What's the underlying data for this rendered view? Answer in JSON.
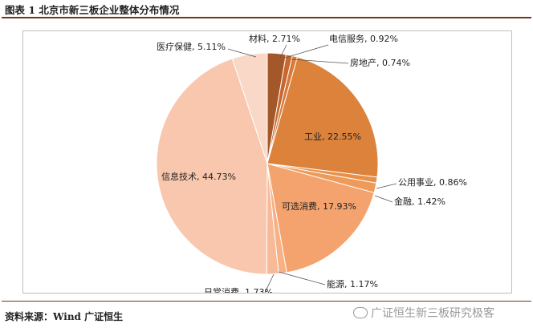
{
  "figure_title": "图表 1 北京市新三板企业整体分布情况",
  "source_note": "资料来源：Wind 广证恒生",
  "watermark": "广证恒生新三板研究极客",
  "chart_data": {
    "type": "pie",
    "title": "",
    "slices": [
      {
        "label": "材料",
        "value": 2.71,
        "display": "材料, 2.71%",
        "color": "#a4582a"
      },
      {
        "label": "电信服务",
        "value": 0.92,
        "display": "电信服务, 0.92%",
        "color": "#c8682d"
      },
      {
        "label": "房地产",
        "value": 0.74,
        "display": "房地产, 0.74%",
        "color": "#d6793a"
      },
      {
        "label": "工业",
        "value": 22.55,
        "display": "工业, 22.55%",
        "color": "#dc823a"
      },
      {
        "label": "公用事业",
        "value": 0.86,
        "display": "公用事业, 0.86%",
        "color": "#e8904a"
      },
      {
        "label": "金融",
        "value": 1.42,
        "display": "金融, 1.42%",
        "color": "#ee9a58"
      },
      {
        "label": "可选消费",
        "value": 17.93,
        "display": "可选消费, 17.93%",
        "color": "#f4a36e"
      },
      {
        "label": "能源",
        "value": 1.17,
        "display": "能源, 1.17%",
        "color": "#f6b185"
      },
      {
        "label": "日常消费",
        "value": 1.73,
        "display": "日常消费, 1.73%",
        "color": "#f7ba98"
      },
      {
        "label": "信息技术",
        "value": 44.73,
        "display": "信息技术, 44.73%",
        "color": "#f8c7ad"
      },
      {
        "label": "医疗保健",
        "value": 5.11,
        "display": "医疗保健, 5.11%",
        "color": "#f9d8c7"
      }
    ]
  }
}
